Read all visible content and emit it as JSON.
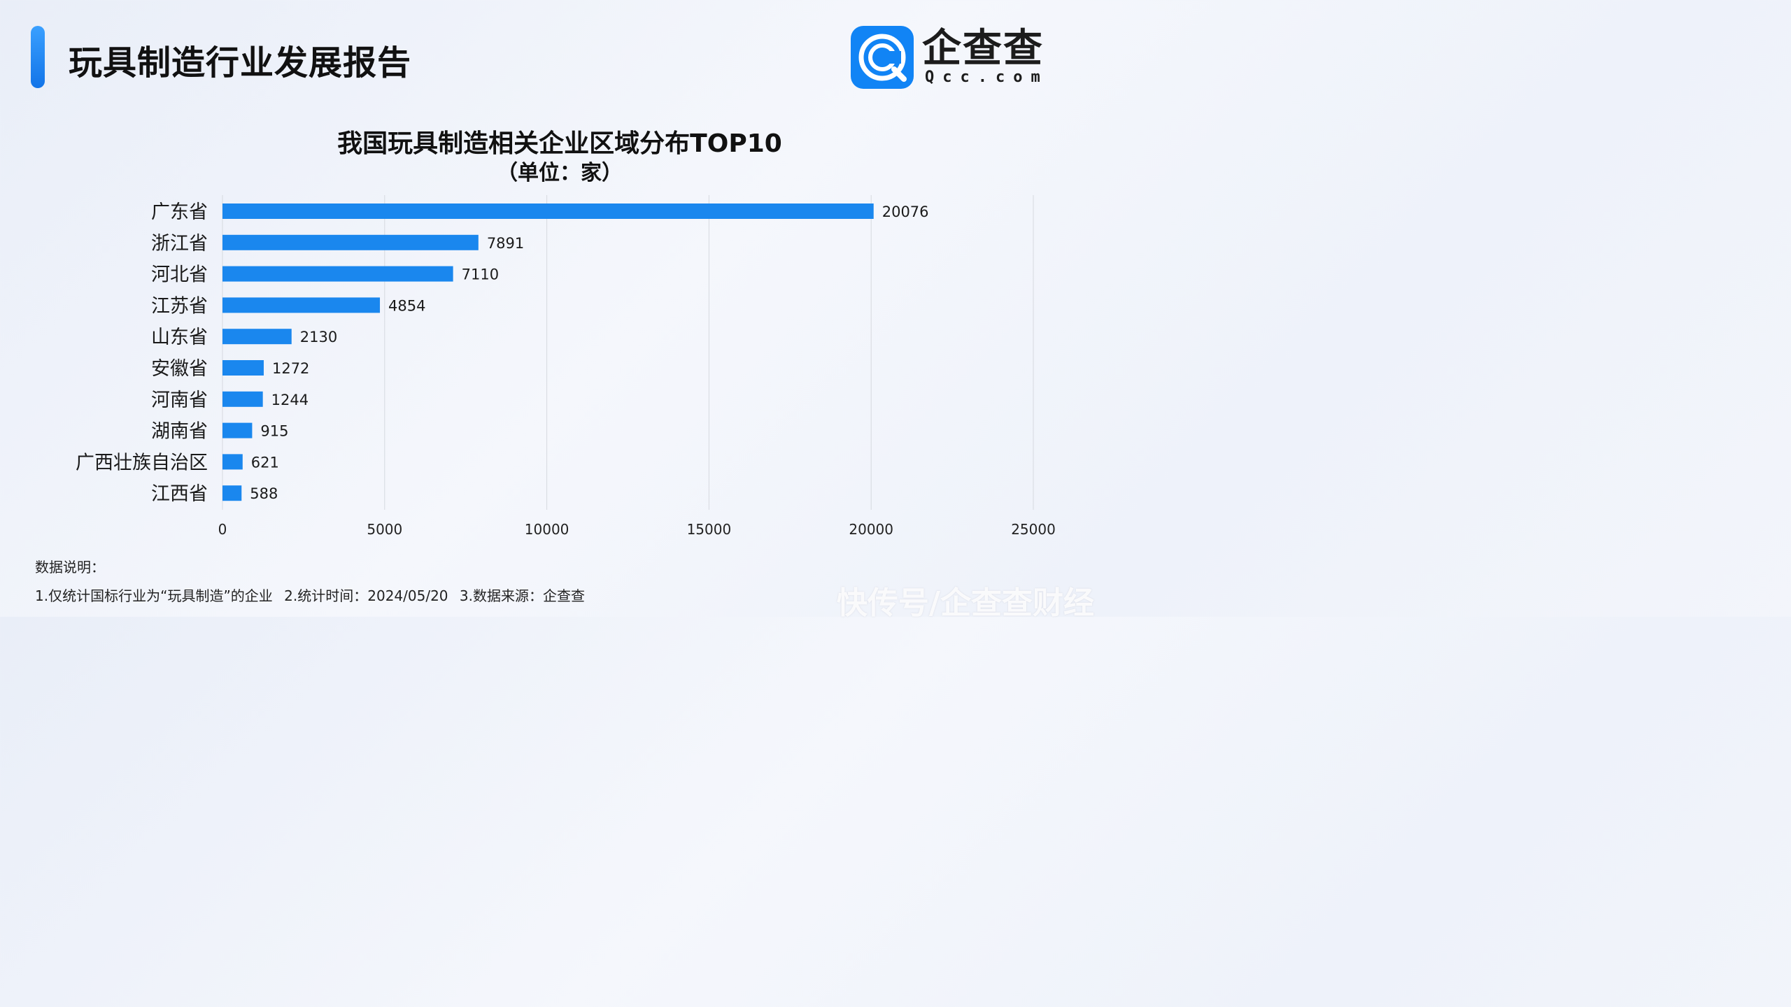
{
  "header": {
    "title": "玩具制造行业发展报告"
  },
  "logo": {
    "cn": "企查查",
    "en": "Qcc.com"
  },
  "colors": {
    "bar": "#1a87ee",
    "accent": "#1c7ff0",
    "grid": "#d6d9df",
    "logo_bg": "#1184f5"
  },
  "chart_data": {
    "type": "bar",
    "orientation": "horizontal",
    "title": "我国玩具制造相关企业区域分布TOP10",
    "subtitle": "（单位：家）",
    "categories": [
      "广东省",
      "浙江省",
      "河北省",
      "江苏省",
      "山东省",
      "安徽省",
      "河南省",
      "湖南省",
      "广西壮族自治区",
      "江西省"
    ],
    "values": [
      20076,
      7891,
      7110,
      4854,
      2130,
      1272,
      1244,
      915,
      621,
      588
    ],
    "xlim": [
      0,
      25000
    ],
    "xticks": [
      0,
      5000,
      10000,
      15000,
      20000,
      25000
    ],
    "xlabel": "",
    "ylabel": "",
    "grid": true,
    "data_labels": true
  },
  "notes": {
    "heading": "数据说明：",
    "line": "1.仅统计国标行业为“玩具制造”的企业 2.统计时间：2024/05/20 3.数据来源：企查查"
  },
  "watermark": "快传号/企查查财经"
}
